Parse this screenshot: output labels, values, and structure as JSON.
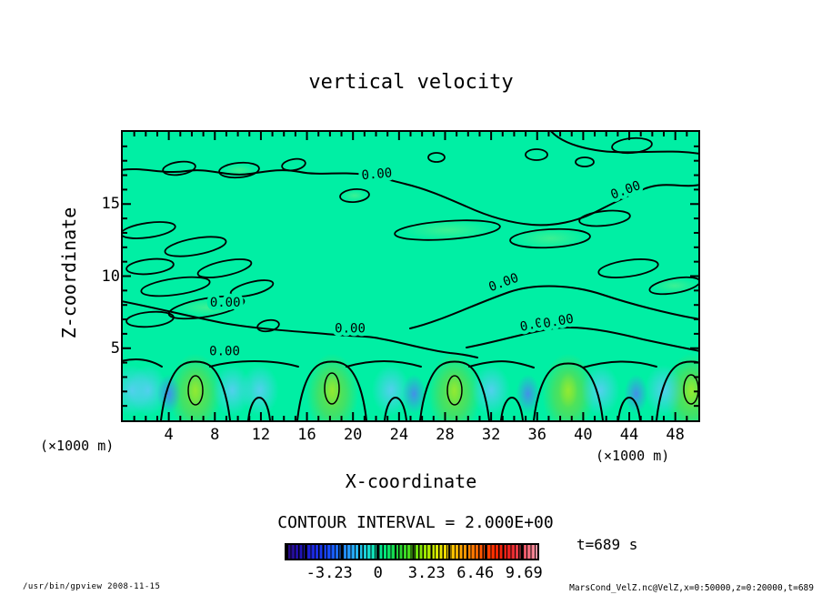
{
  "title": "vertical velocity",
  "plot": {
    "x_axis": {
      "label": "X-coordinate",
      "unit_left": "(×1000 m)",
      "unit_right": "(×1000 m)"
    },
    "y_axis": {
      "label": "Z-coordinate"
    }
  },
  "contour_note": "CONTOUR INTERVAL = 2.000E+00",
  "time_label": "t=689 s",
  "footer": {
    "left": "/usr/bin/gpview  2008-11-15",
    "right": "MarsCond_VelZ.nc@VelZ,x=0:50000,z=0:20000,t=689"
  },
  "colors": {
    "field_base": "#00efa4",
    "updraft_green": "#6ee13c",
    "updraft_core": "#96eb32",
    "downdraft_cyan": "#5accf0",
    "downdraft_blue": "#468ceb",
    "contour_line": "#000000"
  },
  "chart_data": {
    "type": "contour",
    "title": "vertical velocity",
    "xlabel": "X-coordinate (×1000 m)",
    "ylabel": "Z-coordinate (×1000 m)",
    "x_range": [
      0,
      50
    ],
    "y_range": [
      0,
      20
    ],
    "x_ticks": [
      4,
      8,
      12,
      16,
      20,
      24,
      28,
      32,
      36,
      40,
      44,
      48
    ],
    "y_ticks": [
      5,
      10,
      15
    ],
    "x_minor_step": 1,
    "y_minor_step": 1,
    "contour_interval": 2.0,
    "contour_label": "0.00",
    "contour_labels": [
      {
        "x": 22.1,
        "y": 16.8,
        "rot": -5
      },
      {
        "x": 43.8,
        "y": 15.7,
        "rot": -20
      },
      {
        "x": 8.9,
        "y": 7.9,
        "rot": 0
      },
      {
        "x": 19.75,
        "y": 6.1,
        "rot": 0
      },
      {
        "x": 33.2,
        "y": 9.3,
        "rot": -20
      },
      {
        "x": 35.9,
        "y": 6.4,
        "rot": -12
      },
      {
        "x": 37.9,
        "y": 6.6,
        "rot": -10
      },
      {
        "x": 8.85,
        "y": 4.5,
        "rot": 0
      }
    ],
    "updraft_x": [
      6.3,
      18.2,
      28.8,
      38.7,
      49.4
    ],
    "downdraft_cyan_x": [
      0.8,
      2.2,
      9.5,
      11.9,
      23.3,
      32.0,
      41.5,
      47.0
    ],
    "downdraft_blue_x": [
      4.0,
      25.3,
      35.2,
      44.6
    ],
    "plume_center_z": 2.0,
    "colorbar": {
      "tick_labels": [
        "-3.23",
        "0",
        "3.23",
        "6.46",
        "9.69"
      ],
      "tick_values": [
        -3.23,
        0,
        3.23,
        6.46,
        9.69
      ],
      "value_range": [
        -6.2,
        10.7
      ],
      "stops": [
        "#2a0a7a",
        "#2012b4",
        "#1c2ae0",
        "#1648f8",
        "#2080ff",
        "#28b4f4",
        "#14e0c8",
        "#00e87c",
        "#20d238",
        "#54dc14",
        "#a0e800",
        "#e4e800",
        "#ffc000",
        "#ff8c00",
        "#ff5400",
        "#fa2800",
        "#e82020",
        "#e85060",
        "#f898a8"
      ]
    },
    "legend_position": "bottom",
    "grid": false
  }
}
